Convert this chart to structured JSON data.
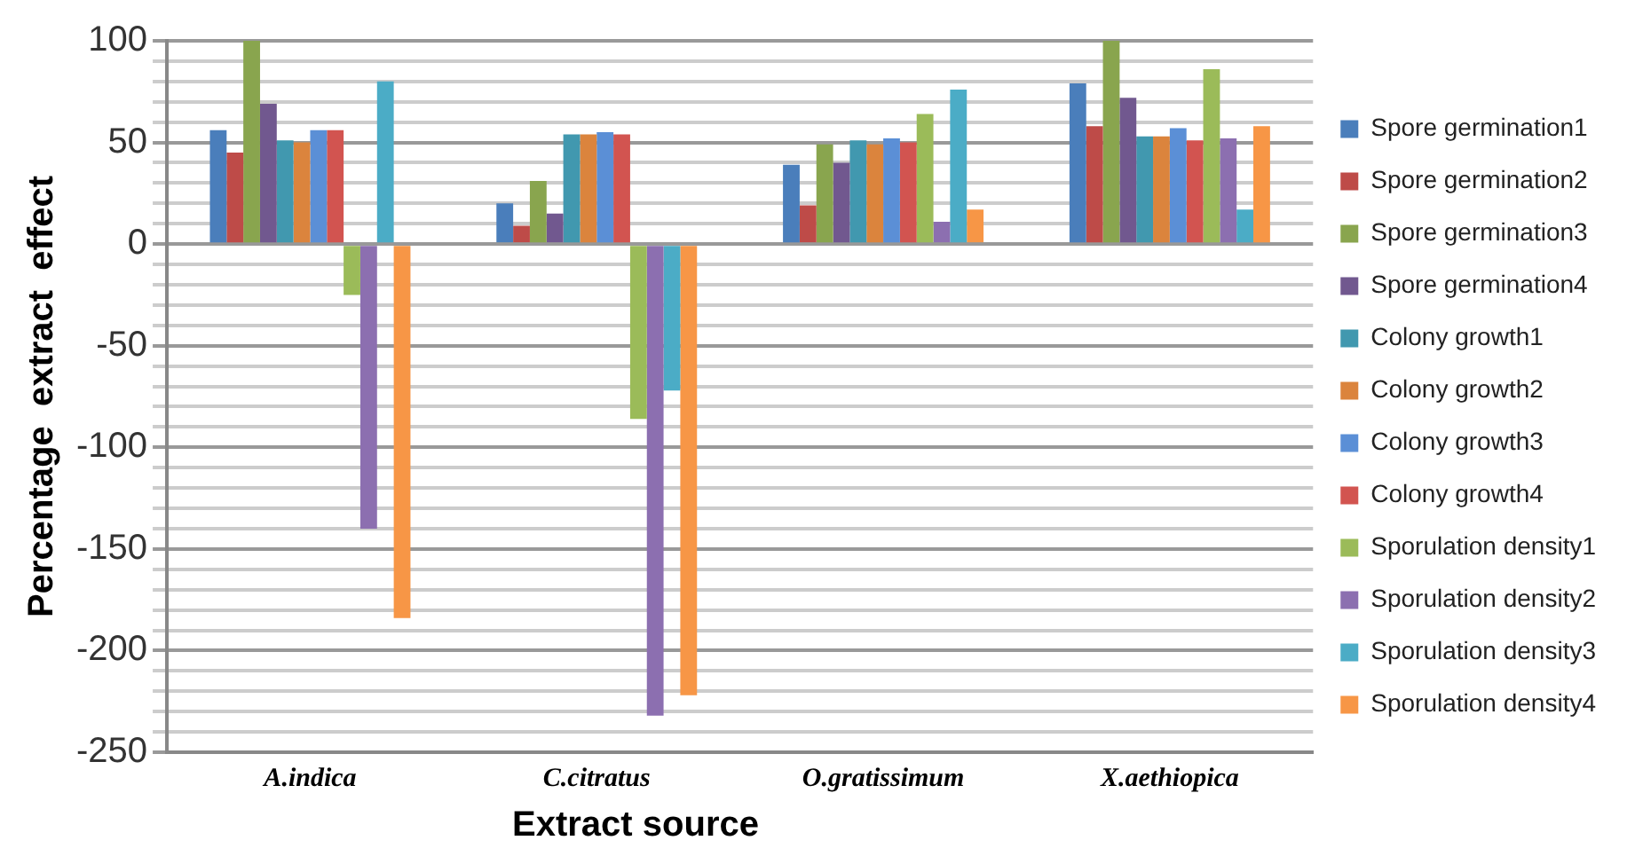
{
  "chart_data": {
    "type": "bar",
    "xlabel": "Extract source",
    "ylabel": "Percentage  extract  effect",
    "categories": [
      "A.indica",
      "C.citratus",
      "O.gratissimum",
      "X.aethiopica"
    ],
    "series": [
      {
        "name": "Spore germination1",
        "color": "#4a7ebb",
        "values": [
          56,
          20,
          39,
          79
        ]
      },
      {
        "name": "Spore germination2",
        "color": "#be4b48",
        "values": [
          45,
          9,
          19,
          58
        ]
      },
      {
        "name": "Spore germination3",
        "color": "#89a54e",
        "values": [
          100,
          31,
          49,
          100
        ]
      },
      {
        "name": "Spore germination4",
        "color": "#71588f",
        "values": [
          69,
          15,
          40,
          72
        ]
      },
      {
        "name": "Colony growth1",
        "color": "#4198af",
        "values": [
          51,
          54,
          51,
          53
        ]
      },
      {
        "name": "Colony growth2",
        "color": "#db843d",
        "values": [
          50,
          54,
          49,
          53
        ]
      },
      {
        "name": "Colony growth3",
        "color": "#5b8fd6",
        "values": [
          56,
          55,
          52,
          57
        ]
      },
      {
        "name": "Colony growth4",
        "color": "#d25450",
        "values": [
          56,
          54,
          50,
          51
        ]
      },
      {
        "name": "Sporulation density1",
        "color": "#9bbb59",
        "values": [
          -25,
          -86,
          64,
          86
        ]
      },
      {
        "name": "Sporulation density2",
        "color": "#8c6fb0",
        "values": [
          -140,
          -232,
          11,
          52
        ]
      },
      {
        "name": "Sporulation density3",
        "color": "#4bacc6",
        "values": [
          80,
          -72,
          76,
          17
        ]
      },
      {
        "name": "Sporulation density4",
        "color": "#f79646",
        "values": [
          -184,
          -222,
          17,
          58
        ]
      }
    ],
    "ylim": [
      -250,
      100
    ],
    "yticks": [
      -250,
      {
        "value": -240,
        "label": null
      },
      {
        "value": -230,
        "label": null
      },
      {
        "value": -220,
        "label": null
      },
      {
        "value": -210,
        "label": null
      },
      -200,
      {
        "value": -190,
        "label": null
      },
      {
        "value": -180,
        "label": null
      },
      {
        "value": -170,
        "label": null
      },
      {
        "value": -160,
        "label": null
      },
      -150,
      {
        "value": -140,
        "label": null
      },
      {
        "value": -130,
        "label": null
      },
      {
        "value": -120,
        "label": null
      },
      {
        "value": -110,
        "label": null
      },
      -100,
      {
        "value": -90,
        "label": null
      },
      {
        "value": -80,
        "label": null
      },
      {
        "value": -70,
        "label": null
      },
      {
        "value": -60,
        "label": null
      },
      -50,
      {
        "value": -40,
        "label": null
      },
      {
        "value": -30,
        "label": null
      },
      {
        "value": -20,
        "label": null
      },
      {
        "value": -10,
        "label": null
      },
      0,
      {
        "value": 10,
        "label": null
      },
      {
        "value": 20,
        "label": null
      },
      {
        "value": 30,
        "label": null
      },
      {
        "value": 40,
        "label": null
      },
      50,
      {
        "value": 60,
        "label": null
      },
      {
        "value": 70,
        "label": null
      },
      {
        "value": 80,
        "label": null
      },
      {
        "value": 90,
        "label": null
      },
      100
    ],
    "grid": "y",
    "legend": "right"
  }
}
